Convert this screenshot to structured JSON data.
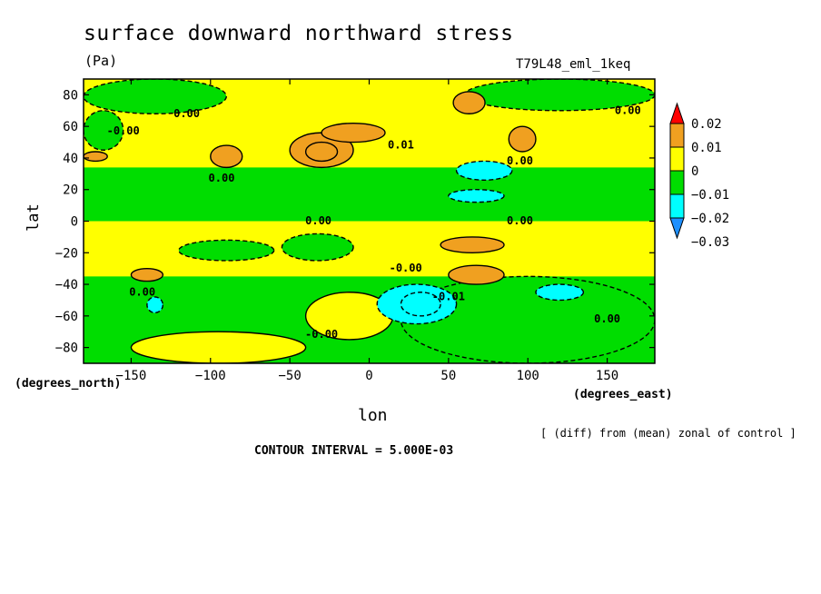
{
  "chart_data": {
    "type": "heatmap",
    "title": "surface downward northward stress",
    "units": "(Pa)",
    "run_label": "T79L48_eml_1keq",
    "xlabel": "lon",
    "ylabel": "lat",
    "x_units": "(degrees_east)",
    "y_units": "(degrees_north)",
    "xlim": [
      -180,
      180
    ],
    "ylim": [
      -90,
      90
    ],
    "x_ticks": [
      -150,
      -100,
      -50,
      0,
      50,
      100,
      150
    ],
    "y_ticks": [
      -80,
      -60,
      -40,
      -20,
      0,
      20,
      40,
      60,
      80
    ],
    "x_tick_labels": [
      "−150",
      "−100",
      "−50",
      "0",
      "50",
      "100",
      "150"
    ],
    "y_tick_labels": [
      "−80",
      "−60",
      "−40",
      "−20",
      "0",
      "20",
      "40",
      "60",
      "80"
    ],
    "contour_interval": 0.005,
    "contour_labels": [
      {
        "text": "0.00",
        "lon": -115,
        "lat": 68
      },
      {
        "text": "-0.00",
        "lon": -155,
        "lat": 57
      },
      {
        "text": "0.00",
        "lon": -93,
        "lat": 27
      },
      {
        "text": "0.01",
        "lon": 20,
        "lat": 48
      },
      {
        "text": "0.00",
        "lon": 95,
        "lat": 38
      },
      {
        "text": "0.00",
        "lon": 163,
        "lat": 70
      },
      {
        "text": "0.00",
        "lon": -32,
        "lat": 0
      },
      {
        "text": "0.00",
        "lon": 95,
        "lat": 0
      },
      {
        "text": "-0.00",
        "lon": 23,
        "lat": -30
      },
      {
        "text": "0.00",
        "lon": -143,
        "lat": -45
      },
      {
        "text": "-0.01",
        "lon": 50,
        "lat": -48
      },
      {
        "text": "0.00",
        "lon": 150,
        "lat": -62
      },
      {
        "text": "-0.00",
        "lon": -30,
        "lat": -72
      }
    ],
    "colorbar": {
      "levels": [
        0.02,
        0.01,
        0,
        -0.01,
        -0.02,
        -0.03
      ],
      "level_labels": [
        "0.02",
        "0.01",
        "0",
        "−0.01",
        "−0.02",
        "−0.03"
      ],
      "colors": [
        "#ff0000",
        "#f0a020",
        "#ffff00",
        "#00dd00",
        "#00ffff",
        "#1e90ff"
      ]
    },
    "regions": [
      {
        "value": 0.0025,
        "lon": [
          -180,
          180
        ],
        "lat": [
          0,
          90
        ]
      },
      {
        "value": -0.0025,
        "lon": [
          -180,
          180
        ],
        "lat": [
          -90,
          0
        ]
      },
      {
        "value": -0.0025,
        "lon": [
          -180,
          180
        ],
        "lat": [
          0,
          34
        ]
      },
      {
        "value": 0.0025,
        "lon": [
          -180,
          180
        ],
        "lat": [
          -35,
          0
        ]
      },
      {
        "value": -0.0025,
        "lon": [
          -180,
          -90
        ],
        "lat": [
          68,
          90
        ]
      },
      {
        "value": -0.0025,
        "lon": [
          60,
          180
        ],
        "lat": [
          70,
          90
        ]
      },
      {
        "value": -0.0025,
        "lon": [
          -180,
          -155
        ],
        "lat": [
          45,
          70
        ]
      },
      {
        "value": -0.0025,
        "lon": [
          -55,
          -10
        ],
        "lat": [
          -25,
          -8
        ]
      },
      {
        "value": -0.0025,
        "lon": [
          -120,
          -60
        ],
        "lat": [
          -25,
          -12
        ]
      },
      {
        "value": -0.0025,
        "lon": [
          20,
          180
        ],
        "lat": [
          -90,
          -35
        ]
      },
      {
        "value": 0.0025,
        "lon": [
          -150,
          -40
        ],
        "lat": [
          -90,
          -70
        ]
      },
      {
        "value": 0.0025,
        "lon": [
          -40,
          15
        ],
        "lat": [
          -75,
          -45
        ]
      },
      {
        "value": 0.0075,
        "lon": [
          -50,
          -10
        ],
        "lat": [
          34,
          56
        ]
      },
      {
        "value": 0.0075,
        "lon": [
          -100,
          -80
        ],
        "lat": [
          34,
          48
        ]
      },
      {
        "value": 0.0075,
        "lon": [
          -180,
          -165
        ],
        "lat": [
          38,
          44
        ]
      },
      {
        "value": 0.0075,
        "lon": [
          -30,
          10
        ],
        "lat": [
          50,
          62
        ]
      },
      {
        "value": 0.0075,
        "lon": [
          53,
          73
        ],
        "lat": [
          68,
          82
        ]
      },
      {
        "value": 0.0075,
        "lon": [
          88,
          105
        ],
        "lat": [
          44,
          60
        ]
      },
      {
        "value": 0.0075,
        "lon": [
          45,
          85
        ],
        "lat": [
          -20,
          -10
        ]
      },
      {
        "value": 0.0075,
        "lon": [
          50,
          85
        ],
        "lat": [
          -40,
          -28
        ]
      },
      {
        "value": 0.0075,
        "lon": [
          -150,
          -130
        ],
        "lat": [
          -38,
          -30
        ]
      },
      {
        "value": 0.0125,
        "lon": [
          -40,
          -20
        ],
        "lat": [
          38,
          50
        ]
      },
      {
        "value": -0.0125,
        "lon": [
          55,
          90
        ],
        "lat": [
          26,
          38
        ]
      },
      {
        "value": -0.0125,
        "lon": [
          50,
          85
        ],
        "lat": [
          12,
          20
        ]
      },
      {
        "value": -0.0125,
        "lon": [
          5,
          55
        ],
        "lat": [
          -65,
          -40
        ]
      },
      {
        "value": -0.0125,
        "lon": [
          105,
          135
        ],
        "lat": [
          -50,
          -40
        ]
      },
      {
        "value": -0.0125,
        "lon": [
          -140,
          -130
        ],
        "lat": [
          -58,
          -48
        ]
      },
      {
        "value": -0.0175,
        "lon": [
          20,
          45
        ],
        "lat": [
          -60,
          -45
        ]
      }
    ]
  }
}
